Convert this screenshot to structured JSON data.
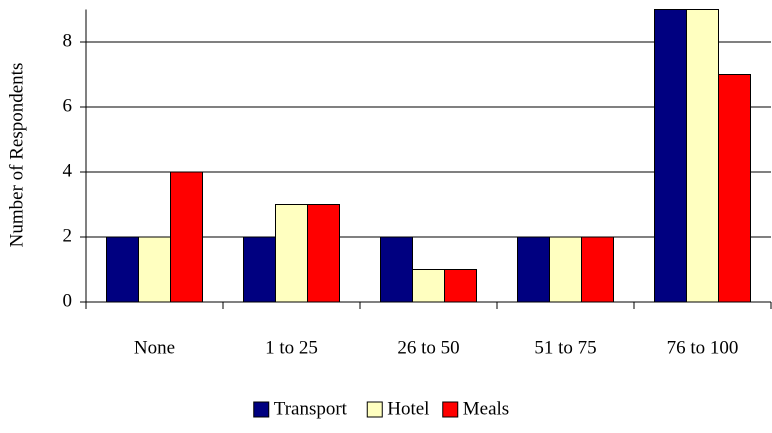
{
  "chart_data": {
    "type": "bar",
    "y_label": "Number of Respondents",
    "categories": [
      "None",
      "1 to 25",
      "26 to 50",
      "51 to 75",
      "76 to 100"
    ],
    "series": [
      {
        "name": "Transport",
        "color": "#000080",
        "values": [
          2,
          2,
          2,
          2,
          9
        ]
      },
      {
        "name": "Hotel",
        "color": "#ffffc0",
        "values": [
          2,
          3,
          1,
          2,
          9
        ]
      },
      {
        "name": "Meals",
        "color": "#ff0000",
        "values": [
          4,
          3,
          1,
          2,
          7
        ]
      }
    ],
    "ylim": [
      0,
      9
    ],
    "yticks": [
      0,
      2,
      4,
      6,
      8
    ],
    "grid": true,
    "legend": "bottom"
  }
}
